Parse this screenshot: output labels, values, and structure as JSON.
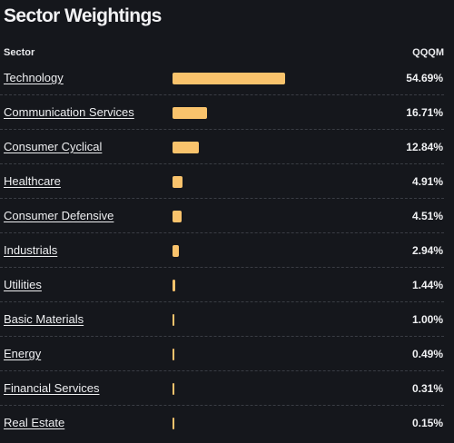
{
  "title": "Sector Weightings",
  "header": {
    "sector": "Sector",
    "fund": "QQQM"
  },
  "colors": {
    "bar": "#f9c36c",
    "background": "#15171c"
  },
  "chart_data": {
    "type": "bar",
    "categories": [
      "Technology",
      "Communication Services",
      "Consumer Cyclical",
      "Healthcare",
      "Consumer Defensive",
      "Industrials",
      "Utilities",
      "Basic Materials",
      "Energy",
      "Financial Services",
      "Real Estate"
    ],
    "series": [
      {
        "values": [
          54.69,
          16.71,
          12.84,
          4.91,
          4.51,
          2.94,
          1.44,
          1.0,
          0.49,
          0.31,
          0.15
        ]
      }
    ]
  },
  "rows": [
    {
      "sector": "Technology",
      "value": 54.69,
      "label": "54.69%"
    },
    {
      "sector": "Communication Services",
      "value": 16.71,
      "label": "16.71%"
    },
    {
      "sector": "Consumer Cyclical",
      "value": 12.84,
      "label": "12.84%"
    },
    {
      "sector": "Healthcare",
      "value": 4.91,
      "label": "4.91%"
    },
    {
      "sector": "Consumer Defensive",
      "value": 4.51,
      "label": "4.51%"
    },
    {
      "sector": "Industrials",
      "value": 2.94,
      "label": "2.94%"
    },
    {
      "sector": "Utilities",
      "value": 1.44,
      "label": "1.44%"
    },
    {
      "sector": "Basic Materials",
      "value": 1.0,
      "label": "1.00%"
    },
    {
      "sector": "Energy",
      "value": 0.49,
      "label": "0.49%"
    },
    {
      "sector": "Financial Services",
      "value": 0.31,
      "label": "0.31%"
    },
    {
      "sector": "Real Estate",
      "value": 0.15,
      "label": "0.15%"
    }
  ]
}
